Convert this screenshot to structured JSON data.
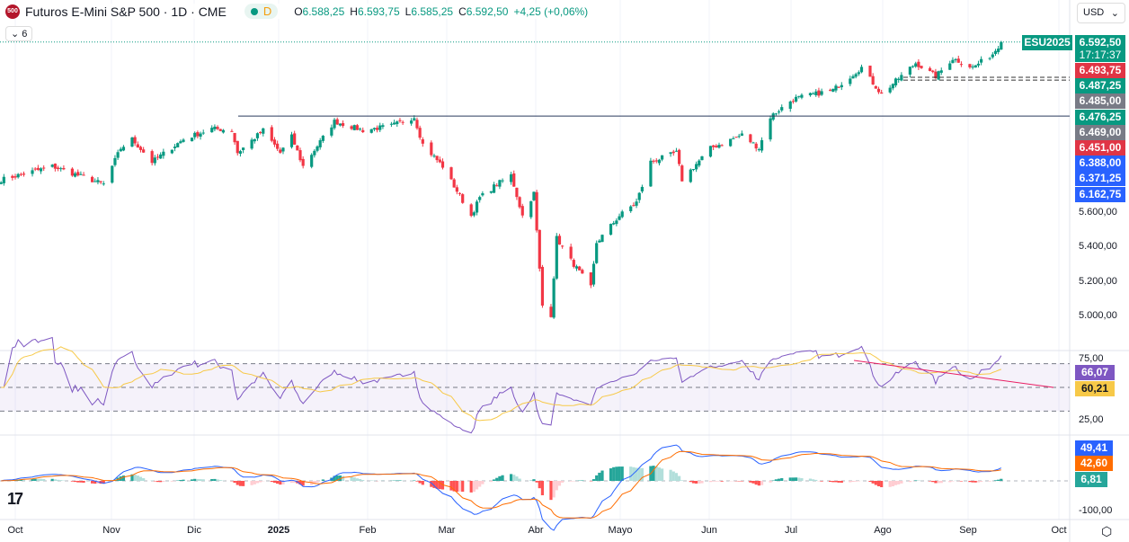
{
  "header": {
    "logo_text": "500",
    "title": "Futuros E-Mini S&P 500 · 1D · CME",
    "session": "D",
    "ohlc": {
      "o_label": "O",
      "o": "6.588,25",
      "h_label": "H",
      "h": "6.593,75",
      "l_label": "L",
      "l": "6.585,25",
      "c_label": "C",
      "c": "6.592,50",
      "change": "+4,25 (+0,06%)"
    },
    "indicators_collapsed": "6",
    "currency": "USD"
  },
  "price_tags": {
    "symbol": "ESU2025",
    "last": "6.592,50",
    "countdown": "17:17:37",
    "levels": [
      {
        "v": "6.493,75",
        "c": "#e03545"
      },
      {
        "v": "6.487,25",
        "c": "#089981"
      },
      {
        "v": "6.485,00",
        "c": "#787b86"
      },
      {
        "v": "6.476,25",
        "c": "#089981"
      },
      {
        "v": "6.469,00",
        "c": "#787b86"
      },
      {
        "v": "6.451,00",
        "c": "#e03545"
      },
      {
        "v": "6.388,00",
        "c": "#2962ff"
      },
      {
        "v": "6.371,25",
        "c": "#2962ff"
      },
      {
        "v": "6.162,75",
        "c": "#2962ff"
      }
    ]
  },
  "price_axis": [
    "5.600,00",
    "5.400,00",
    "5.200,00",
    "5.000,00"
  ],
  "rsi": {
    "axis": [
      "75,00",
      "25,00"
    ],
    "rsi_value": "66,07",
    "ma_value": "60,21",
    "colors": {
      "rsi": "#7e57c2",
      "ma": "#f7c948"
    }
  },
  "macd": {
    "axis": [
      "-100,00"
    ],
    "macd_value": "49,41",
    "signal_value": "42,60",
    "hist_value": "6,81",
    "colors": {
      "macd": "#2962ff",
      "signal": "#ff6d00",
      "hist": "#26a69a"
    }
  },
  "time_axis": [
    "Oct",
    "Nov",
    "Dic",
    "2025",
    "Feb",
    "Mar",
    "Abr",
    "Mayo",
    "Jun",
    "Jul",
    "Ago",
    "Sep",
    "Oct"
  ],
  "colors": {
    "up": "#089981",
    "down": "#f23645"
  },
  "chart_data": {
    "type": "candlestick",
    "approx_closes": [
      [
        "2024-09-26",
        5793
      ],
      [
        "2024-10-14",
        5871
      ],
      [
        "2024-11-01",
        5767
      ],
      [
        "2024-11-07",
        5976
      ],
      [
        "2024-11-11",
        6028
      ],
      [
        "2024-11-18",
        5897
      ],
      [
        "2024-11-29",
        6028
      ],
      [
        "2024-12-09",
        6090
      ],
      [
        "2024-12-16",
        6080
      ],
      [
        "2024-12-18",
        5950
      ],
      [
        "2024-12-27",
        6080
      ],
      [
        "2025-01-02",
        5950
      ],
      [
        "2025-01-06",
        6043
      ],
      [
        "2025-01-10",
        5871
      ],
      [
        "2025-01-21",
        6132
      ],
      [
        "2025-01-31",
        6080
      ],
      [
        "2025-02-10",
        6106
      ],
      [
        "2025-02-18",
        6158
      ],
      [
        "2025-02-21",
        5999
      ],
      [
        "2025-02-28",
        5871
      ],
      [
        "2025-03-10",
        5584
      ],
      [
        "2025-03-13",
        5689
      ],
      [
        "2025-03-19",
        5767
      ],
      [
        "2025-03-24",
        5819
      ],
      [
        "2025-03-28",
        5584
      ],
      [
        "2025-04-01",
        5715
      ],
      [
        "2025-04-03",
        5271
      ],
      [
        "2025-04-04",
        5063
      ],
      [
        "2025-04-07",
        5010
      ],
      [
        "2025-04-09",
        5454
      ],
      [
        "2025-04-14",
        5324
      ],
      [
        "2025-04-21",
        5167
      ],
      [
        "2025-04-23",
        5428
      ],
      [
        "2025-05-01",
        5584
      ],
      [
        "2025-05-07",
        5663
      ],
      [
        "2025-05-12",
        5897
      ],
      [
        "2025-05-21",
        5950
      ],
      [
        "2025-05-23",
        5793
      ],
      [
        "2025-06-02",
        5976
      ],
      [
        "2025-06-13",
        6054
      ],
      [
        "2025-06-19",
        5976
      ],
      [
        "2025-06-23",
        6158
      ],
      [
        "2025-07-01",
        6262
      ],
      [
        "2025-07-15",
        6314
      ],
      [
        "2025-07-25",
        6445
      ],
      [
        "2025-08-01",
        6288
      ],
      [
        "2025-08-06",
        6366
      ],
      [
        "2025-08-13",
        6471
      ],
      [
        "2025-08-20",
        6393
      ],
      [
        "2025-08-26",
        6497
      ],
      [
        "2025-09-02",
        6445
      ],
      [
        "2025-09-09",
        6523
      ],
      [
        "2025-09-12",
        6592.5
      ]
    ],
    "horizontal_lines": [
      6162.75,
      6388,
      6371.25
    ]
  }
}
